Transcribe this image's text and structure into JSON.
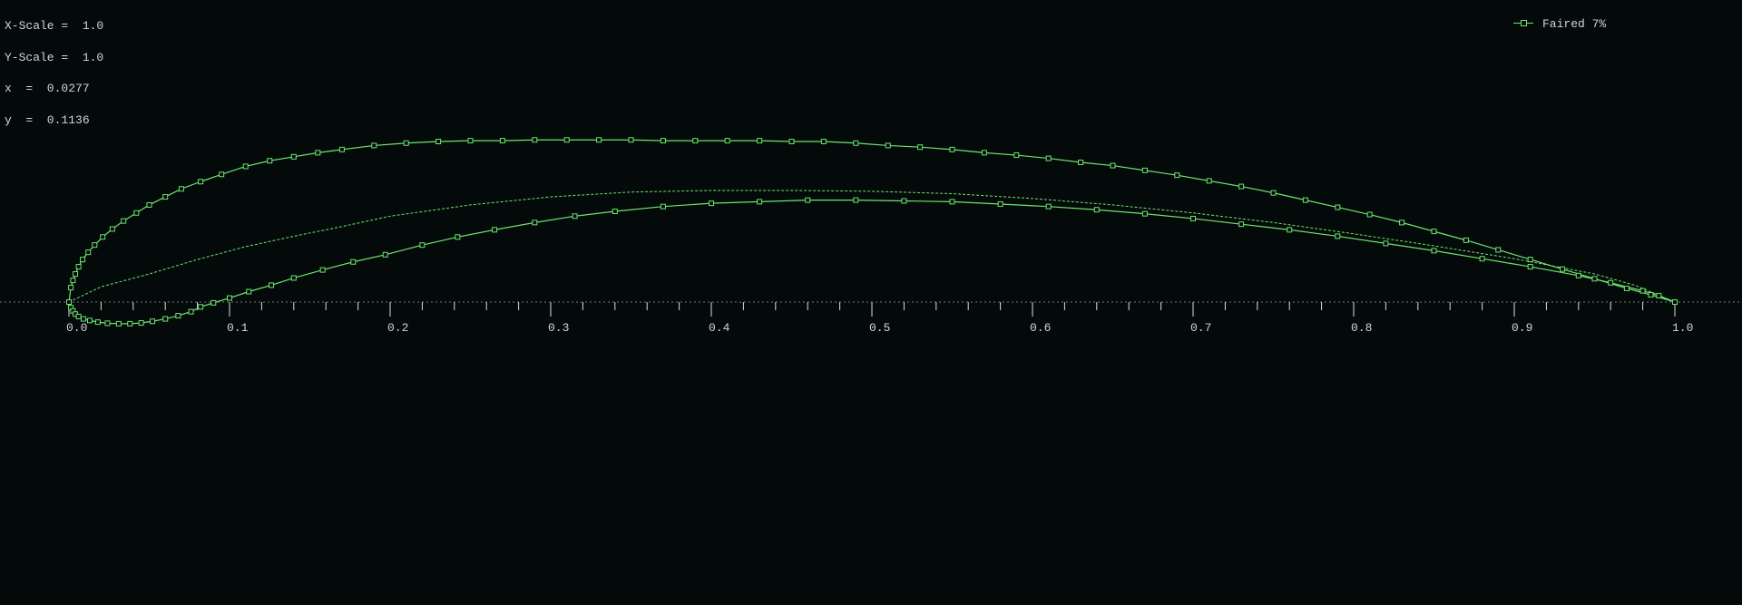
{
  "readout": {
    "x_scale": "X-Scale =  1.0",
    "y_scale": "Y-Scale =  1.0",
    "x": "x  =  0.0277",
    "y": "y  =  0.1136"
  },
  "colors": {
    "background": "#040a0a",
    "curve": "#6fe36f",
    "axis": "#d8dede",
    "text": "#cfd6d6"
  },
  "chart_data": {
    "type": "line",
    "title": "",
    "xlabel": "",
    "ylabel": "",
    "xlim": [
      0.0,
      1.0
    ],
    "x_ticks": [
      "0.0",
      "0.1",
      "0.2",
      "0.3",
      "0.4",
      "0.5",
      "0.6",
      "0.7",
      "0.8",
      "0.9",
      "1.0"
    ],
    "legend": {
      "position": "top-right",
      "entries": [
        "Faired 7%"
      ]
    },
    "grid": false,
    "series": [
      {
        "name": "Faired 7%",
        "role": "upper-surface",
        "style": "solid-with-square-markers",
        "x": [
          0.0,
          0.0012,
          0.0025,
          0.004,
          0.006,
          0.0085,
          0.012,
          0.016,
          0.021,
          0.027,
          0.034,
          0.042,
          0.05,
          0.06,
          0.07,
          0.082,
          0.095,
          0.11,
          0.125,
          0.14,
          0.155,
          0.17,
          0.19,
          0.21,
          0.23,
          0.25,
          0.27,
          0.29,
          0.31,
          0.33,
          0.35,
          0.37,
          0.39,
          0.41,
          0.43,
          0.45,
          0.47,
          0.49,
          0.51,
          0.53,
          0.55,
          0.57,
          0.59,
          0.61,
          0.63,
          0.65,
          0.67,
          0.69,
          0.71,
          0.73,
          0.75,
          0.77,
          0.79,
          0.81,
          0.83,
          0.85,
          0.87,
          0.89,
          0.91,
          0.93,
          0.95,
          0.97,
          0.985,
          1.0
        ],
        "y": [
          0.0,
          0.009,
          0.0135,
          0.0175,
          0.022,
          0.0265,
          0.031,
          0.0355,
          0.0405,
          0.0455,
          0.0505,
          0.0555,
          0.0605,
          0.0655,
          0.0705,
          0.075,
          0.0795,
          0.0845,
          0.088,
          0.0905,
          0.093,
          0.095,
          0.0975,
          0.099,
          0.1,
          0.1005,
          0.1005,
          0.101,
          0.101,
          0.101,
          0.101,
          0.1005,
          0.1005,
          0.1005,
          0.1005,
          0.1,
          0.1,
          0.099,
          0.0975,
          0.0965,
          0.095,
          0.093,
          0.0915,
          0.0895,
          0.087,
          0.085,
          0.082,
          0.079,
          0.0755,
          0.072,
          0.068,
          0.0635,
          0.059,
          0.0545,
          0.0495,
          0.044,
          0.0385,
          0.0325,
          0.0265,
          0.0205,
          0.0145,
          0.0085,
          0.0045,
          0.0
        ]
      },
      {
        "name": "Faired 7%",
        "role": "lower-surface",
        "style": "solid-with-square-markers",
        "x": [
          0.0,
          0.0012,
          0.0025,
          0.004,
          0.006,
          0.009,
          0.013,
          0.018,
          0.024,
          0.031,
          0.038,
          0.045,
          0.052,
          0.06,
          0.068,
          0.076,
          0.082,
          0.09,
          0.1,
          0.112,
          0.126,
          0.14,
          0.158,
          0.177,
          0.197,
          0.22,
          0.242,
          0.265,
          0.29,
          0.315,
          0.34,
          0.37,
          0.4,
          0.43,
          0.46,
          0.49,
          0.52,
          0.55,
          0.58,
          0.61,
          0.64,
          0.67,
          0.7,
          0.73,
          0.76,
          0.79,
          0.82,
          0.85,
          0.88,
          0.91,
          0.94,
          0.96,
          0.98,
          0.99,
          1.0
        ],
        "y": [
          0.0,
          -0.0035,
          -0.0055,
          -0.0075,
          -0.009,
          -0.0105,
          -0.0115,
          -0.0125,
          -0.0132,
          -0.0135,
          -0.0135,
          -0.013,
          -0.012,
          -0.0105,
          -0.0085,
          -0.006,
          -0.003,
          -0.0005,
          0.0025,
          0.0065,
          0.0105,
          0.015,
          0.02,
          0.025,
          0.0295,
          0.0355,
          0.0405,
          0.045,
          0.0495,
          0.0535,
          0.0565,
          0.0595,
          0.0615,
          0.0625,
          0.0635,
          0.0635,
          0.063,
          0.0625,
          0.061,
          0.0595,
          0.0575,
          0.055,
          0.052,
          0.0485,
          0.045,
          0.041,
          0.0365,
          0.032,
          0.027,
          0.022,
          0.0165,
          0.012,
          0.007,
          0.004,
          0.0
        ]
      },
      {
        "name": "Faired 7%",
        "role": "mean-line",
        "style": "dashed",
        "x": [
          0.0,
          0.02,
          0.05,
          0.08,
          0.11,
          0.14,
          0.17,
          0.2,
          0.25,
          0.3,
          0.35,
          0.4,
          0.45,
          0.5,
          0.55,
          0.6,
          0.65,
          0.7,
          0.75,
          0.8,
          0.85,
          0.9,
          0.95,
          0.975,
          1.0
        ],
        "y": [
          0.0,
          0.0095,
          0.0175,
          0.0265,
          0.0345,
          0.041,
          0.047,
          0.0535,
          0.0605,
          0.0655,
          0.0685,
          0.0695,
          0.0695,
          0.069,
          0.0675,
          0.0645,
          0.0605,
          0.0555,
          0.0495,
          0.0425,
          0.035,
          0.027,
          0.0175,
          0.0105,
          0.0
        ]
      }
    ]
  }
}
